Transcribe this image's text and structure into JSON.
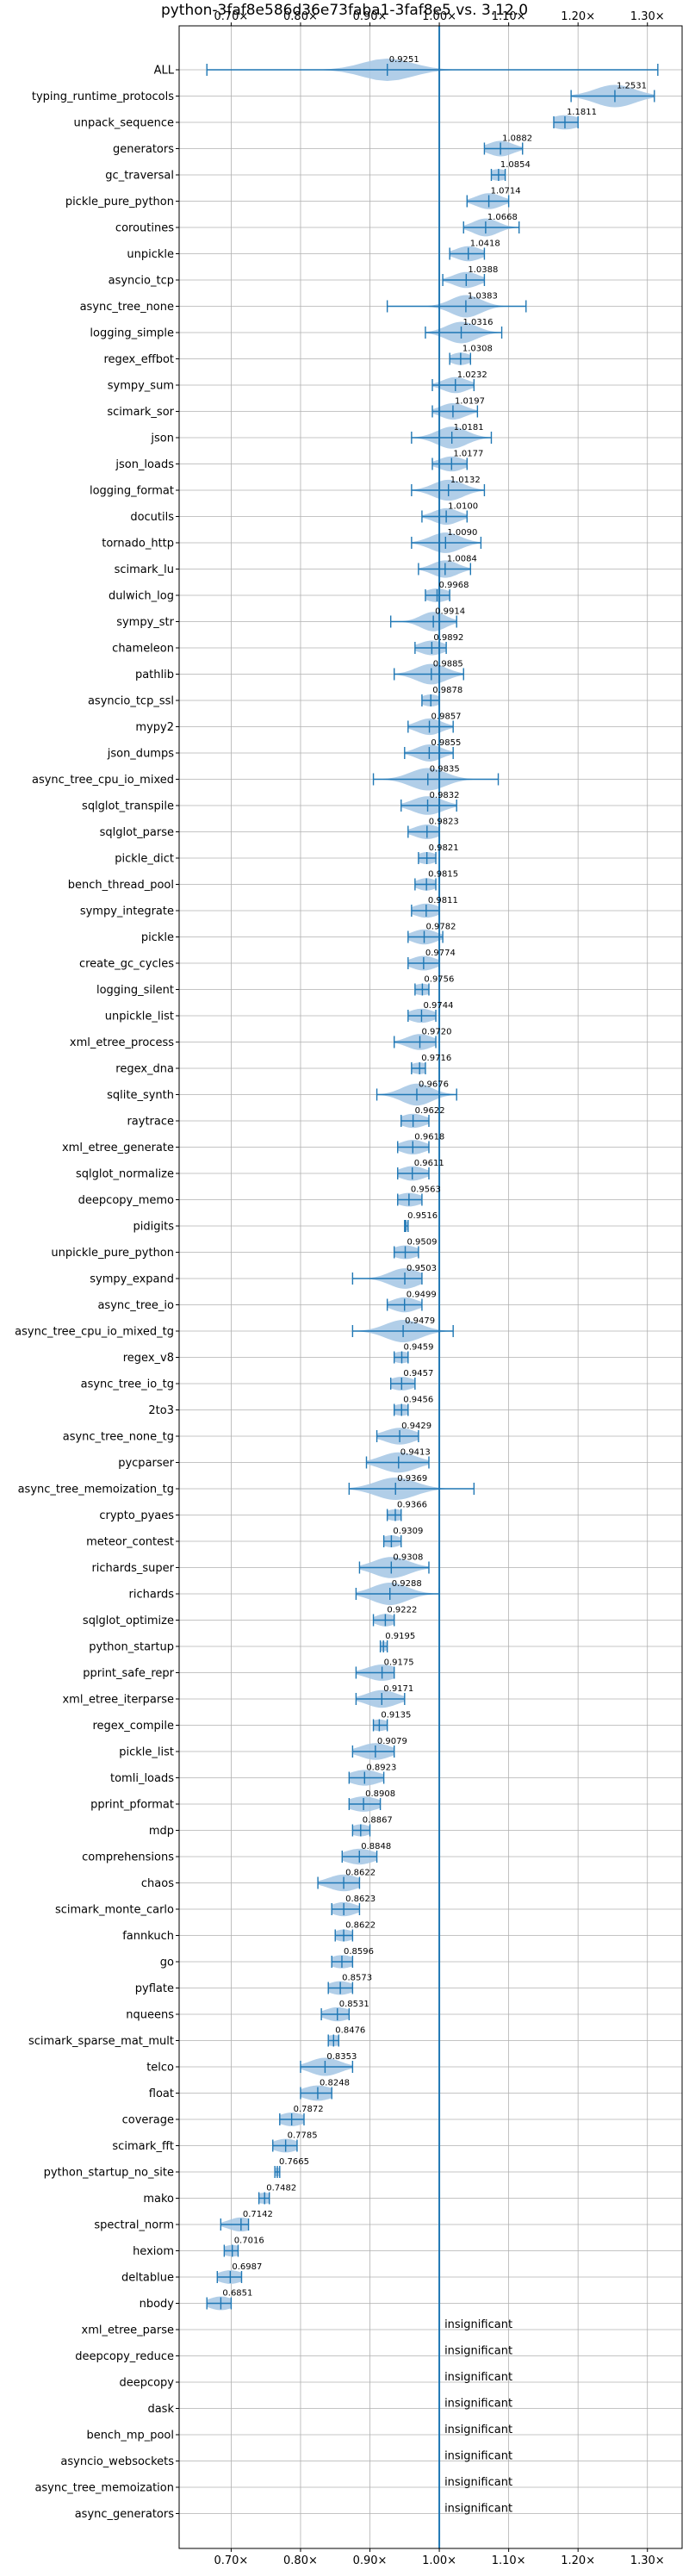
{
  "chart_data": {
    "type": "violin",
    "title": "python-3faf8e586d36e73faba1-3faf8e5 vs. 3.12.0",
    "xlabel": "",
    "ylabel": "",
    "xlim": [
      0.625,
      1.35
    ],
    "xticks": [
      0.7,
      0.8,
      0.9,
      1.0,
      1.1,
      1.2,
      1.3
    ],
    "xtick_labels": [
      "0.70×",
      "0.80×",
      "0.90×",
      "1.00×",
      "1.10×",
      "1.20×",
      "1.30×"
    ],
    "grid": true,
    "reference_line": 1.0,
    "colors": {
      "violin": "#a9c9e6",
      "stats": "#1f77b4",
      "grid": "#b0b0b0",
      "ref": "#1f77b4"
    },
    "benchmarks": [
      {
        "name": "ALL",
        "mean": 0.9251,
        "min": 0.665,
        "max": 1.315,
        "w": 0.02
      },
      {
        "name": "typing_runtime_protocols",
        "mean": 1.2531,
        "min": 1.19,
        "max": 1.31,
        "w": 0.016
      },
      {
        "name": "unpack_sequence",
        "mean": 1.1811,
        "min": 1.165,
        "max": 1.2,
        "w": 0.012
      },
      {
        "name": "generators",
        "mean": 1.0882,
        "min": 1.065,
        "max": 1.12,
        "w": 0.01
      },
      {
        "name": "gc_traversal",
        "mean": 1.0854,
        "min": 1.075,
        "max": 1.095,
        "w": 0.008
      },
      {
        "name": "pickle_pure_python",
        "mean": 1.0714,
        "min": 1.04,
        "max": 1.1,
        "w": 0.01
      },
      {
        "name": "coroutines",
        "mean": 1.0668,
        "min": 1.035,
        "max": 1.115,
        "w": 0.01
      },
      {
        "name": "unpickle",
        "mean": 1.0418,
        "min": 1.015,
        "max": 1.065,
        "w": 0.01
      },
      {
        "name": "asyncio_tcp",
        "mean": 1.0388,
        "min": 1.005,
        "max": 1.065,
        "w": 0.01
      },
      {
        "name": "async_tree_none",
        "mean": 1.0383,
        "min": 0.925,
        "max": 1.125,
        "w": 0.012
      },
      {
        "name": "logging_simple",
        "mean": 1.0316,
        "min": 0.98,
        "max": 1.09,
        "w": 0.012
      },
      {
        "name": "regex_effbot",
        "mean": 1.0308,
        "min": 1.015,
        "max": 1.045,
        "w": 0.008
      },
      {
        "name": "sympy_sum",
        "mean": 1.0232,
        "min": 0.99,
        "max": 1.05,
        "w": 0.01
      },
      {
        "name": "scimark_sor",
        "mean": 1.0197,
        "min": 0.99,
        "max": 1.055,
        "w": 0.01
      },
      {
        "name": "json",
        "mean": 1.0181,
        "min": 0.96,
        "max": 1.075,
        "w": 0.012
      },
      {
        "name": "json_loads",
        "mean": 1.0177,
        "min": 0.99,
        "max": 1.04,
        "w": 0.01
      },
      {
        "name": "logging_format",
        "mean": 1.0132,
        "min": 0.96,
        "max": 1.065,
        "w": 0.012
      },
      {
        "name": "docutils",
        "mean": 1.01,
        "min": 0.975,
        "max": 1.04,
        "w": 0.01
      },
      {
        "name": "tornado_http",
        "mean": 1.009,
        "min": 0.96,
        "max": 1.06,
        "w": 0.012
      },
      {
        "name": "scimark_lu",
        "mean": 1.0084,
        "min": 0.97,
        "max": 1.045,
        "w": 0.01
      },
      {
        "name": "dulwich_log",
        "mean": 0.9968,
        "min": 0.98,
        "max": 1.015,
        "w": 0.01
      },
      {
        "name": "sympy_str",
        "mean": 0.9914,
        "min": 0.93,
        "max": 1.025,
        "w": 0.01
      },
      {
        "name": "chameleon",
        "mean": 0.9892,
        "min": 0.965,
        "max": 1.01,
        "w": 0.01
      },
      {
        "name": "pathlib",
        "mean": 0.9885,
        "min": 0.935,
        "max": 1.035,
        "w": 0.012
      },
      {
        "name": "asyncio_tcp_ssl",
        "mean": 0.9878,
        "min": 0.975,
        "max": 1.0,
        "w": 0.008
      },
      {
        "name": "mypy2",
        "mean": 0.9857,
        "min": 0.955,
        "max": 1.02,
        "w": 0.01
      },
      {
        "name": "json_dumps",
        "mean": 0.9855,
        "min": 0.95,
        "max": 1.02,
        "w": 0.01
      },
      {
        "name": "async_tree_cpu_io_mixed",
        "mean": 0.9835,
        "min": 0.905,
        "max": 1.085,
        "w": 0.014
      },
      {
        "name": "sqlglot_transpile",
        "mean": 0.9832,
        "min": 0.945,
        "max": 1.025,
        "w": 0.012
      },
      {
        "name": "sqlglot_parse",
        "mean": 0.9823,
        "min": 0.955,
        "max": 1.0,
        "w": 0.01
      },
      {
        "name": "pickle_dict",
        "mean": 0.9821,
        "min": 0.97,
        "max": 0.995,
        "w": 0.008
      },
      {
        "name": "bench_thread_pool",
        "mean": 0.9815,
        "min": 0.965,
        "max": 0.995,
        "w": 0.008
      },
      {
        "name": "sympy_integrate",
        "mean": 0.9811,
        "min": 0.96,
        "max": 1.0,
        "w": 0.01
      },
      {
        "name": "pickle",
        "mean": 0.9782,
        "min": 0.955,
        "max": 1.005,
        "w": 0.01
      },
      {
        "name": "create_gc_cycles",
        "mean": 0.9774,
        "min": 0.955,
        "max": 1.0,
        "w": 0.01
      },
      {
        "name": "logging_silent",
        "mean": 0.9756,
        "min": 0.965,
        "max": 0.985,
        "w": 0.008
      },
      {
        "name": "unpickle_list",
        "mean": 0.9744,
        "min": 0.955,
        "max": 0.995,
        "w": 0.01
      },
      {
        "name": "xml_etree_process",
        "mean": 0.972,
        "min": 0.935,
        "max": 0.995,
        "w": 0.01
      },
      {
        "name": "regex_dna",
        "mean": 0.9716,
        "min": 0.96,
        "max": 0.98,
        "w": 0.008
      },
      {
        "name": "sqlite_synth",
        "mean": 0.9676,
        "min": 0.91,
        "max": 1.025,
        "w": 0.012
      },
      {
        "name": "raytrace",
        "mean": 0.9622,
        "min": 0.945,
        "max": 0.985,
        "w": 0.01
      },
      {
        "name": "xml_etree_generate",
        "mean": 0.9618,
        "min": 0.94,
        "max": 0.985,
        "w": 0.01
      },
      {
        "name": "sqlglot_normalize",
        "mean": 0.9611,
        "min": 0.94,
        "max": 0.985,
        "w": 0.01
      },
      {
        "name": "deepcopy_memo",
        "mean": 0.9563,
        "min": 0.94,
        "max": 0.975,
        "w": 0.01
      },
      {
        "name": "pidigits",
        "mean": 0.9516,
        "min": 0.95,
        "max": 0.955,
        "w": 0.005
      },
      {
        "name": "unpickle_pure_python",
        "mean": 0.9509,
        "min": 0.935,
        "max": 0.97,
        "w": 0.01
      },
      {
        "name": "sympy_expand",
        "mean": 0.9503,
        "min": 0.875,
        "max": 0.975,
        "w": 0.012
      },
      {
        "name": "async_tree_io",
        "mean": 0.9499,
        "min": 0.925,
        "max": 0.975,
        "w": 0.01
      },
      {
        "name": "async_tree_cpu_io_mixed_tg",
        "mean": 0.9479,
        "min": 0.875,
        "max": 1.02,
        "w": 0.014
      },
      {
        "name": "regex_v8",
        "mean": 0.9459,
        "min": 0.935,
        "max": 0.955,
        "w": 0.008
      },
      {
        "name": "async_tree_io_tg",
        "mean": 0.9457,
        "min": 0.93,
        "max": 0.965,
        "w": 0.01
      },
      {
        "name": "2to3",
        "mean": 0.9456,
        "min": 0.935,
        "max": 0.955,
        "w": 0.008
      },
      {
        "name": "async_tree_none_tg",
        "mean": 0.9429,
        "min": 0.91,
        "max": 0.97,
        "w": 0.012
      },
      {
        "name": "pycparser",
        "mean": 0.9413,
        "min": 0.895,
        "max": 0.985,
        "w": 0.014
      },
      {
        "name": "async_tree_memoization_tg",
        "mean": 0.9369,
        "min": 0.87,
        "max": 1.05,
        "w": 0.016
      },
      {
        "name": "crypto_pyaes",
        "mean": 0.9366,
        "min": 0.925,
        "max": 0.945,
        "w": 0.008
      },
      {
        "name": "meteor_contest",
        "mean": 0.9309,
        "min": 0.92,
        "max": 0.945,
        "w": 0.008
      },
      {
        "name": "richards_super",
        "mean": 0.9308,
        "min": 0.885,
        "max": 0.985,
        "w": 0.014
      },
      {
        "name": "richards",
        "mean": 0.9288,
        "min": 0.88,
        "max": 1.0,
        "w": 0.014
      },
      {
        "name": "sqlglot_optimize",
        "mean": 0.9222,
        "min": 0.905,
        "max": 0.935,
        "w": 0.008
      },
      {
        "name": "python_startup",
        "mean": 0.9195,
        "min": 0.915,
        "max": 0.925,
        "w": 0.005
      },
      {
        "name": "pprint_safe_repr",
        "mean": 0.9175,
        "min": 0.88,
        "max": 0.935,
        "w": 0.012
      },
      {
        "name": "xml_etree_iterparse",
        "mean": 0.9171,
        "min": 0.88,
        "max": 0.95,
        "w": 0.012
      },
      {
        "name": "regex_compile",
        "mean": 0.9135,
        "min": 0.905,
        "max": 0.925,
        "w": 0.008
      },
      {
        "name": "pickle_list",
        "mean": 0.9079,
        "min": 0.875,
        "max": 0.935,
        "w": 0.012
      },
      {
        "name": "tomli_loads",
        "mean": 0.8923,
        "min": 0.87,
        "max": 0.92,
        "w": 0.012
      },
      {
        "name": "pprint_pformat",
        "mean": 0.8908,
        "min": 0.87,
        "max": 0.915,
        "w": 0.012
      },
      {
        "name": "mdp",
        "mean": 0.8867,
        "min": 0.875,
        "max": 0.9,
        "w": 0.008
      },
      {
        "name": "comprehensions",
        "mean": 0.8848,
        "min": 0.86,
        "max": 0.91,
        "w": 0.012
      },
      {
        "name": "chaos",
        "mean": 0.8622,
        "min": 0.825,
        "max": 0.885,
        "w": 0.012
      },
      {
        "name": "scimark_monte_carlo",
        "mean": 0.8623,
        "min": 0.845,
        "max": 0.885,
        "w": 0.01
      },
      {
        "name": "fannkuch",
        "mean": 0.8622,
        "min": 0.85,
        "max": 0.875,
        "w": 0.008
      },
      {
        "name": "go",
        "mean": 0.8596,
        "min": 0.845,
        "max": 0.875,
        "w": 0.01
      },
      {
        "name": "pyflate",
        "mean": 0.8573,
        "min": 0.84,
        "max": 0.875,
        "w": 0.01
      },
      {
        "name": "nqueens",
        "mean": 0.8531,
        "min": 0.83,
        "max": 0.87,
        "w": 0.01
      },
      {
        "name": "scimark_sparse_mat_mult",
        "mean": 0.8476,
        "min": 0.84,
        "max": 0.855,
        "w": 0.008
      },
      {
        "name": "telco",
        "mean": 0.8353,
        "min": 0.8,
        "max": 0.875,
        "w": 0.012
      },
      {
        "name": "float",
        "mean": 0.8248,
        "min": 0.8,
        "max": 0.845,
        "w": 0.012
      },
      {
        "name": "coverage",
        "mean": 0.7872,
        "min": 0.77,
        "max": 0.805,
        "w": 0.01
      },
      {
        "name": "scimark_fft",
        "mean": 0.7785,
        "min": 0.76,
        "max": 0.795,
        "w": 0.01
      },
      {
        "name": "python_startup_no_site",
        "mean": 0.7665,
        "min": 0.763,
        "max": 0.77,
        "w": 0.004
      },
      {
        "name": "mako",
        "mean": 0.7482,
        "min": 0.74,
        "max": 0.755,
        "w": 0.008
      },
      {
        "name": "spectral_norm",
        "mean": 0.7142,
        "min": 0.685,
        "max": 0.725,
        "w": 0.01
      },
      {
        "name": "hexiom",
        "mean": 0.7016,
        "min": 0.69,
        "max": 0.71,
        "w": 0.008
      },
      {
        "name": "deltablue",
        "mean": 0.6987,
        "min": 0.68,
        "max": 0.715,
        "w": 0.01
      },
      {
        "name": "nbody",
        "mean": 0.6851,
        "min": 0.665,
        "max": 0.7,
        "w": 0.01
      },
      {
        "name": "xml_etree_parse",
        "insignificant": true
      },
      {
        "name": "deepcopy_reduce",
        "insignificant": true
      },
      {
        "name": "deepcopy",
        "insignificant": true
      },
      {
        "name": "dask",
        "insignificant": true
      },
      {
        "name": "bench_mp_pool",
        "insignificant": true
      },
      {
        "name": "asyncio_websockets",
        "insignificant": true
      },
      {
        "name": "async_tree_memoization",
        "insignificant": true
      },
      {
        "name": "async_generators",
        "insignificant": true
      }
    ],
    "insignificant_label": "insignificant"
  }
}
